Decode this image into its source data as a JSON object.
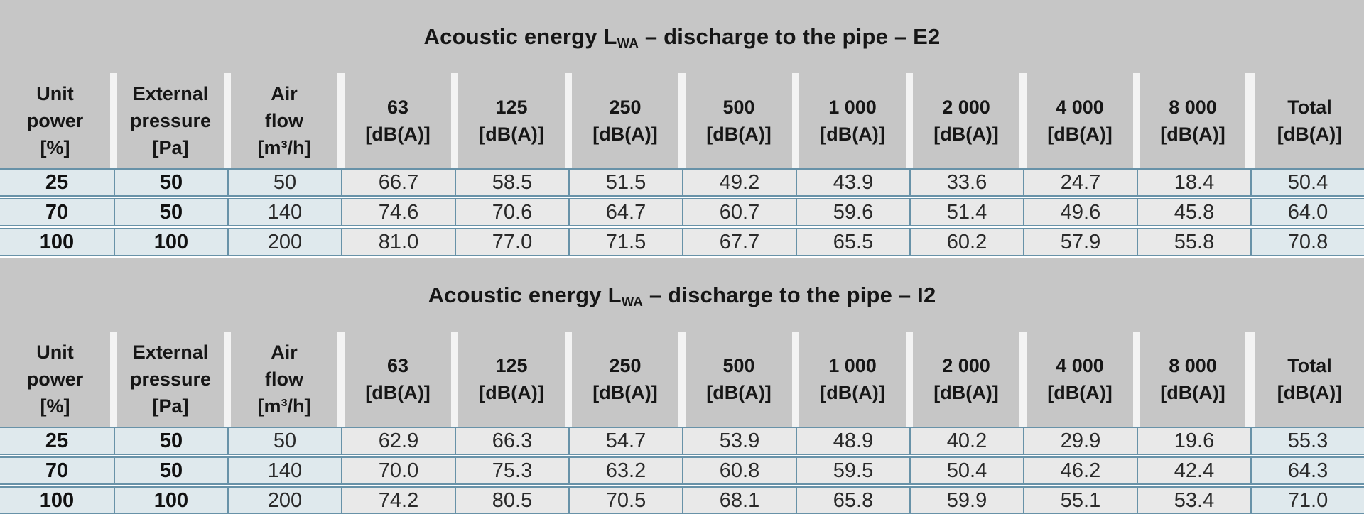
{
  "colors": {
    "band_gray": "#c6c6c6",
    "separator_white": "#f3f3f3",
    "cell_blue": "#dfe9ed",
    "cell_gray": "#e9e9e9",
    "border_blue": "#6892a8"
  },
  "headers": [
    {
      "line1": "Unit",
      "line2": "power",
      "line3": "[%]"
    },
    {
      "line1": "External",
      "line2": "pressure",
      "line3": "[Pa]"
    },
    {
      "line1": "Air",
      "line2": "flow",
      "line3": "[m³/h]"
    },
    {
      "line1": "63",
      "line2": "[dB(A)]"
    },
    {
      "line1": "125",
      "line2": "[dB(A)]"
    },
    {
      "line1": "250",
      "line2": "[dB(A)]"
    },
    {
      "line1": "500",
      "line2": "[dB(A)]"
    },
    {
      "line1": "1 000",
      "line2": "[dB(A)]"
    },
    {
      "line1": "2 000",
      "line2": "[dB(A)]"
    },
    {
      "line1": "4 000",
      "line2": "[dB(A)]"
    },
    {
      "line1": "8 000",
      "line2": "[dB(A)]"
    },
    {
      "line1": "Total",
      "line2": "[dB(A)]"
    }
  ],
  "tables": [
    {
      "title": {
        "prefix": "Acoustic energy L",
        "sub": "WA",
        "suffix": " – discharge to the pipe – E2"
      },
      "rows": [
        [
          "25",
          "50",
          "50",
          "66.7",
          "58.5",
          "51.5",
          "49.2",
          "43.9",
          "33.6",
          "24.7",
          "18.4",
          "50.4"
        ],
        [
          "70",
          "50",
          "140",
          "74.6",
          "70.6",
          "64.7",
          "60.7",
          "59.6",
          "51.4",
          "49.6",
          "45.8",
          "64.0"
        ],
        [
          "100",
          "100",
          "200",
          "81.0",
          "77.0",
          "71.5",
          "67.7",
          "65.5",
          "60.2",
          "57.9",
          "55.8",
          "70.8"
        ]
      ]
    },
    {
      "title": {
        "prefix": "Acoustic energy L",
        "sub": "WA",
        "suffix": " – discharge to the pipe – I2"
      },
      "rows": [
        [
          "25",
          "50",
          "50",
          "62.9",
          "66.3",
          "54.7",
          "53.9",
          "48.9",
          "40.2",
          "29.9",
          "19.6",
          "55.3"
        ],
        [
          "70",
          "50",
          "140",
          "70.0",
          "75.3",
          "63.2",
          "60.8",
          "59.5",
          "50.4",
          "46.2",
          "42.4",
          "64.3"
        ],
        [
          "100",
          "100",
          "200",
          "74.2",
          "80.5",
          "70.5",
          "68.1",
          "65.8",
          "59.9",
          "55.1",
          "53.4",
          "71.0"
        ]
      ]
    }
  ]
}
